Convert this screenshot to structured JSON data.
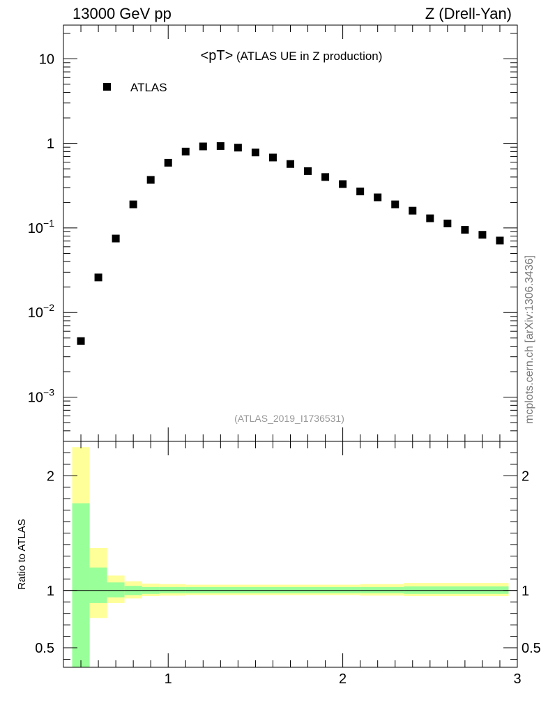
{
  "header": {
    "left": "13000 GeV pp",
    "right": "Z (Drell-Yan)"
  },
  "side_label": "mcplots.cern.ch [arXiv:1306.3436]",
  "chart_data": [
    {
      "type": "scatter",
      "title": "<pT> (ATLAS UE in Z production)",
      "watermark": "(ATLAS_2019_I1736531)",
      "xlim": [
        0.4,
        3.0
      ],
      "ylim": [
        0.0003,
        25
      ],
      "yscale": "log",
      "legend": {
        "position": "top-left",
        "entries": [
          "ATLAS"
        ]
      },
      "series": [
        {
          "name": "ATLAS",
          "marker": "square",
          "color": "#000000",
          "x": [
            0.5,
            0.6,
            0.7,
            0.8,
            0.9,
            1.0,
            1.1,
            1.2,
            1.3,
            1.4,
            1.5,
            1.6,
            1.7,
            1.8,
            1.9,
            2.0,
            2.1,
            2.2,
            2.3,
            2.4,
            2.5,
            2.6,
            2.7,
            2.8,
            2.9
          ],
          "y": [
            0.0046,
            0.026,
            0.075,
            0.19,
            0.37,
            0.59,
            0.8,
            0.92,
            0.93,
            0.89,
            0.78,
            0.68,
            0.57,
            0.47,
            0.4,
            0.33,
            0.27,
            0.23,
            0.19,
            0.16,
            0.13,
            0.113,
            0.095,
            0.083,
            0.071
          ]
        }
      ],
      "yticks": [
        {
          "value": 0.001,
          "base": "10",
          "exp": "−3"
        },
        {
          "value": 0.01,
          "base": "10",
          "exp": "−2"
        },
        {
          "value": 0.1,
          "base": "10",
          "exp": "−1"
        },
        {
          "value": 1,
          "base": "1",
          "exp": ""
        },
        {
          "value": 10,
          "base": "10",
          "exp": ""
        }
      ]
    },
    {
      "type": "area",
      "ylabel": "Ratio to ATLAS",
      "xlim": [
        0.4,
        3.0
      ],
      "ylim": [
        0.33,
        2.3
      ],
      "xticks": [
        1,
        2,
        3
      ],
      "xticklabels": [
        "1",
        "2",
        "3"
      ],
      "yticks": [
        0.5,
        1,
        2
      ],
      "yticklabels": [
        "0.5",
        "1",
        "2"
      ],
      "reference_line": 1,
      "band_colors": {
        "outer": "#ffff99",
        "inner": "#99ff99"
      },
      "bins": [
        {
          "x0": 0.45,
          "x1": 0.55,
          "outer": [
            0.33,
            2.25
          ],
          "inner": [
            0.33,
            1.76
          ]
        },
        {
          "x0": 0.55,
          "x1": 0.65,
          "outer": [
            0.76,
            1.37
          ],
          "inner": [
            0.89,
            1.2
          ]
        },
        {
          "x0": 0.65,
          "x1": 0.75,
          "outer": [
            0.89,
            1.13
          ],
          "inner": [
            0.94,
            1.07
          ]
        },
        {
          "x0": 0.75,
          "x1": 0.85,
          "outer": [
            0.93,
            1.08
          ],
          "inner": [
            0.96,
            1.04
          ]
        },
        {
          "x0": 0.85,
          "x1": 0.95,
          "outer": [
            0.95,
            1.06
          ],
          "inner": [
            0.97,
            1.03
          ]
        },
        {
          "x0": 0.95,
          "x1": 1.1,
          "outer": [
            0.955,
            1.055
          ],
          "inner": [
            0.975,
            1.03
          ]
        },
        {
          "x0": 1.1,
          "x1": 2.1,
          "outer": [
            0.96,
            1.05
          ],
          "inner": [
            0.975,
            1.03
          ]
        },
        {
          "x0": 2.1,
          "x1": 2.35,
          "outer": [
            0.955,
            1.055
          ],
          "inner": [
            0.975,
            1.03
          ]
        },
        {
          "x0": 2.35,
          "x1": 2.95,
          "outer": [
            0.95,
            1.065
          ],
          "inner": [
            0.97,
            1.035
          ]
        }
      ]
    }
  ]
}
